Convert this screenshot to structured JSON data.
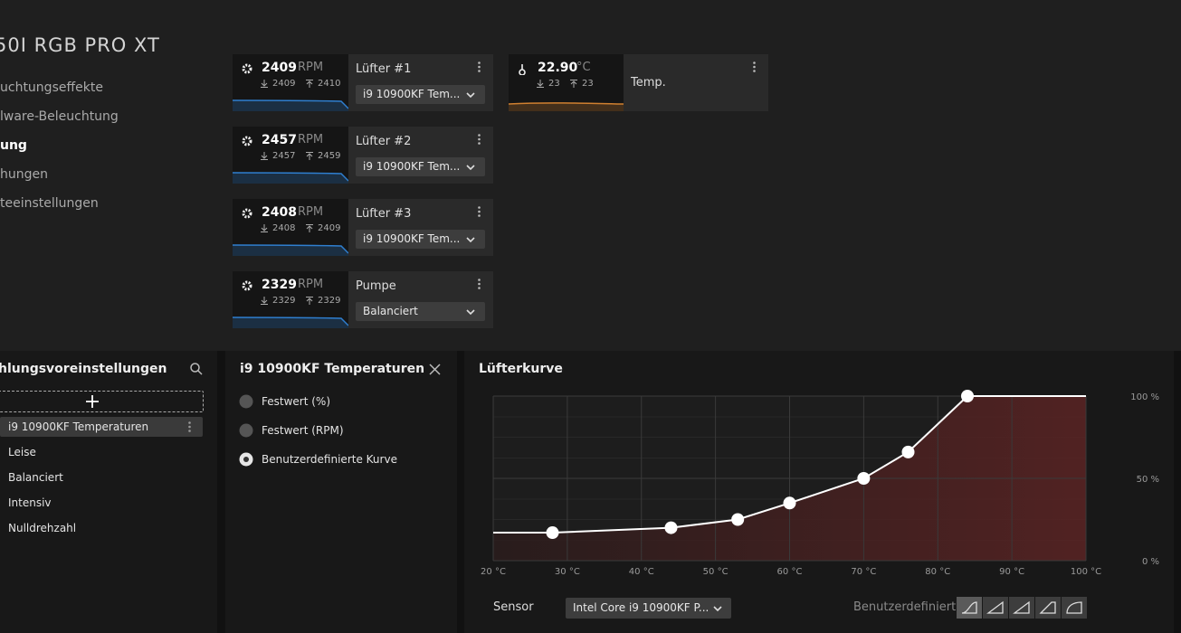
{
  "header": {
    "title": "50I RGB PRO XT"
  },
  "nav": [
    "uchtungseffekte",
    "lware-Beleuchtung",
    "ung",
    "hungen",
    "teeinstellungen"
  ],
  "fans": [
    {
      "rpm": 2409,
      "unit": "RPM",
      "min": 2409,
      "max": 2410,
      "name": "Lüfter #1",
      "source": "i9 10900KF Tem..."
    },
    {
      "rpm": 2457,
      "unit": "RPM",
      "min": 2457,
      "max": 2459,
      "name": "Lüfter #2",
      "source": "i9 10900KF Tem..."
    },
    {
      "rpm": 2408,
      "unit": "RPM",
      "min": 2408,
      "max": 2409,
      "name": "Lüfter #3",
      "source": "i9 10900KF Tem..."
    },
    {
      "rpm": 2329,
      "unit": "RPM",
      "min": 2329,
      "max": 2329,
      "name": "Pumpe",
      "source": "Balanciert"
    }
  ],
  "temp": {
    "value": "22.90",
    "unit": "°C",
    "min": 23,
    "max": 23,
    "name": "Temp."
  },
  "presets": {
    "title": "hlungsvoreinstellungen",
    "selected": 0,
    "items": [
      "i9 10900KF Temperaturen",
      "Leise",
      "Balanciert",
      "Intensiv",
      "Nulldrehzahl"
    ]
  },
  "mode": {
    "title": "i9 10900KF Temperaturen",
    "selected": 2,
    "options": [
      "Festwert (%)",
      "Festwert (RPM)",
      "Benutzerdefinierte Kurve"
    ]
  },
  "sensor": {
    "label": "Sensor",
    "value": "Intel Core i9 10900KF P...",
    "preset": "Benutzerdefiniert"
  },
  "chart_data": {
    "type": "line",
    "title": "Lüfterkurve",
    "x": [
      28,
      44,
      53,
      60,
      70,
      76,
      84
    ],
    "series": [
      {
        "color": "#ffffff",
        "values": [
          17,
          20,
          25,
          35,
          50,
          66,
          100
        ]
      }
    ],
    "xlim": [
      20,
      100
    ],
    "ylim": [
      0,
      100
    ],
    "xticks": [
      {
        "value": 20,
        "label": "20 °C"
      },
      {
        "value": 30,
        "label": "30 °C"
      },
      {
        "value": 40,
        "label": "40 °C"
      },
      {
        "value": 50,
        "label": "50 °C"
      },
      {
        "value": 60,
        "label": "60 °C"
      },
      {
        "value": 70,
        "label": "70 °C"
      },
      {
        "value": 80,
        "label": "80 °C"
      },
      {
        "value": 90,
        "label": "90 °C"
      },
      {
        "value": 100,
        "label": "100 °C"
      }
    ],
    "yticks": [
      {
        "value": 0,
        "label": "0 %"
      },
      {
        "value": 50,
        "label": "50 %"
      },
      {
        "value": 100,
        "label": "100 %"
      }
    ],
    "grid": true
  }
}
